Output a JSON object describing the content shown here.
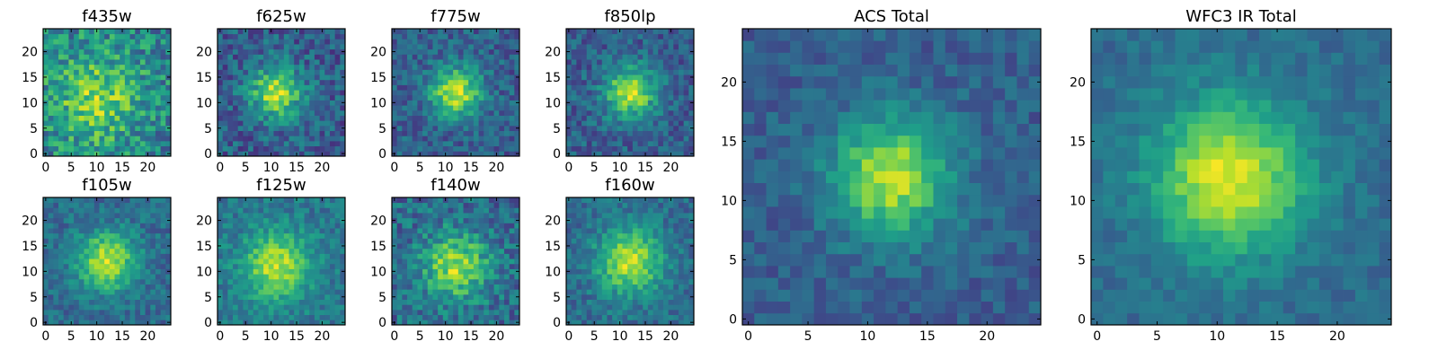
{
  "chart_data": [
    {
      "type": "heatmap",
      "title": "f435w",
      "xticks": [
        "0",
        "5",
        "10",
        "15",
        "20"
      ],
      "yticks": [
        "0",
        "5",
        "10",
        "15",
        "20"
      ],
      "xlim": [
        0,
        25
      ],
      "ylim": [
        0,
        25
      ],
      "grid": false,
      "colormap": "viridis",
      "peak": [
        10,
        11
      ],
      "sigma": 6.0,
      "amplitude": 0.35,
      "noise": 0.45,
      "baseline": 0.45,
      "seed": 1
    },
    {
      "type": "heatmap",
      "title": "f625w",
      "xticks": [
        "0",
        "5",
        "10",
        "15",
        "20"
      ],
      "yticks": [
        "0",
        "5",
        "10",
        "15",
        "20"
      ],
      "xlim": [
        0,
        25
      ],
      "ylim": [
        0,
        25
      ],
      "grid": false,
      "colormap": "viridis",
      "peak": [
        11,
        12
      ],
      "sigma": 3.5,
      "amplitude": 0.6,
      "noise": 0.35,
      "baseline": 0.3,
      "seed": 2
    },
    {
      "type": "heatmap",
      "title": "f775w",
      "xticks": [
        "0",
        "5",
        "10",
        "15",
        "20"
      ],
      "yticks": [
        "0",
        "5",
        "10",
        "15",
        "20"
      ],
      "xlim": [
        0,
        25
      ],
      "ylim": [
        0,
        25
      ],
      "grid": false,
      "colormap": "viridis",
      "peak": [
        12,
        12
      ],
      "sigma": 3.5,
      "amplitude": 0.6,
      "noise": 0.3,
      "baseline": 0.3,
      "seed": 3
    },
    {
      "type": "heatmap",
      "title": "f850lp",
      "xticks": [
        "0",
        "5",
        "10",
        "15",
        "20"
      ],
      "yticks": [
        "0",
        "5",
        "10",
        "15",
        "20"
      ],
      "xlim": [
        0,
        25
      ],
      "ylim": [
        0,
        25
      ],
      "grid": false,
      "colormap": "viridis",
      "peak": [
        12,
        12
      ],
      "sigma": 3.5,
      "amplitude": 0.6,
      "noise": 0.3,
      "baseline": 0.3,
      "seed": 4
    },
    {
      "type": "heatmap",
      "title": "f105w",
      "xticks": [
        "0",
        "5",
        "10",
        "15",
        "20"
      ],
      "yticks": [
        "0",
        "5",
        "10",
        "15",
        "20"
      ],
      "xlim": [
        0,
        25
      ],
      "ylim": [
        0,
        25
      ],
      "grid": false,
      "colormap": "viridis",
      "peak": [
        12,
        12
      ],
      "sigma": 4.0,
      "amplitude": 0.55,
      "noise": 0.25,
      "baseline": 0.35,
      "seed": 5
    },
    {
      "type": "heatmap",
      "title": "f125w",
      "xticks": [
        "0",
        "5",
        "10",
        "15",
        "20"
      ],
      "yticks": [
        "0",
        "5",
        "10",
        "15",
        "20"
      ],
      "xlim": [
        0,
        25
      ],
      "ylim": [
        0,
        25
      ],
      "grid": false,
      "colormap": "viridis",
      "peak": [
        11,
        11
      ],
      "sigma": 4.5,
      "amplitude": 0.5,
      "noise": 0.25,
      "baseline": 0.4,
      "seed": 6
    },
    {
      "type": "heatmap",
      "title": "f140w",
      "xticks": [
        "0",
        "5",
        "10",
        "15",
        "20"
      ],
      "yticks": [
        "0",
        "5",
        "10",
        "15",
        "20"
      ],
      "xlim": [
        0,
        25
      ],
      "ylim": [
        0,
        25
      ],
      "grid": false,
      "colormap": "viridis",
      "peak": [
        12,
        11
      ],
      "sigma": 4.5,
      "amplitude": 0.5,
      "noise": 0.35,
      "baseline": 0.35,
      "seed": 7
    },
    {
      "type": "heatmap",
      "title": "f160w",
      "xticks": [
        "0",
        "5",
        "10",
        "15",
        "20"
      ],
      "yticks": [
        "0",
        "5",
        "10",
        "15",
        "20"
      ],
      "xlim": [
        0,
        25
      ],
      "ylim": [
        0,
        25
      ],
      "grid": false,
      "colormap": "viridis",
      "peak": [
        12,
        12
      ],
      "sigma": 4.5,
      "amplitude": 0.55,
      "noise": 0.25,
      "baseline": 0.35,
      "seed": 8
    },
    {
      "type": "heatmap",
      "title": "ACS Total",
      "xticks": [
        "0",
        "5",
        "10",
        "15",
        "20"
      ],
      "yticks": [
        "0",
        "5",
        "10",
        "15",
        "20"
      ],
      "xlim": [
        0,
        25
      ],
      "ylim": [
        0,
        25
      ],
      "grid": false,
      "colormap": "viridis",
      "peak": [
        12,
        12
      ],
      "sigma": 3.5,
      "amplitude": 0.6,
      "noise": 0.2,
      "baseline": 0.3,
      "seed": 9
    },
    {
      "type": "heatmap",
      "title": "WFC3 IR Total",
      "xticks": [
        "0",
        "5",
        "10",
        "15",
        "20"
      ],
      "yticks": [
        "0",
        "5",
        "10",
        "15",
        "20"
      ],
      "xlim": [
        0,
        25
      ],
      "ylim": [
        0,
        25
      ],
      "grid": false,
      "colormap": "viridis",
      "peak": [
        11,
        12
      ],
      "sigma": 4.5,
      "amplitude": 0.6,
      "noise": 0.15,
      "baseline": 0.35,
      "seed": 10
    }
  ]
}
